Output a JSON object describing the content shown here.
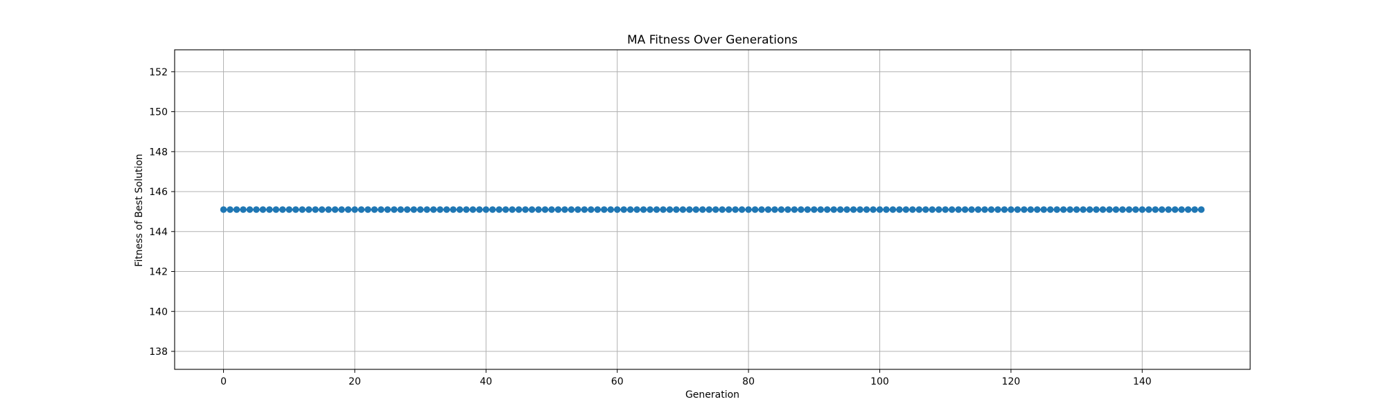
{
  "chart_data": {
    "type": "line",
    "title": "MA Fitness Over Generations",
    "xlabel": "Generation",
    "ylabel": "Fitness of Best Solution",
    "xlim": [
      -7.45,
      156.45
    ],
    "ylim": [
      137.1,
      153.1
    ],
    "xticks": [
      0,
      20,
      40,
      60,
      80,
      100,
      120,
      140
    ],
    "yticks": [
      138,
      140,
      142,
      144,
      146,
      148,
      150,
      152
    ],
    "grid": true,
    "marker": "circle",
    "series": [
      {
        "color": "#1f77b4",
        "x_start": 0,
        "x_end": 149,
        "x_step": 1,
        "y_constant": 145.1
      }
    ]
  }
}
